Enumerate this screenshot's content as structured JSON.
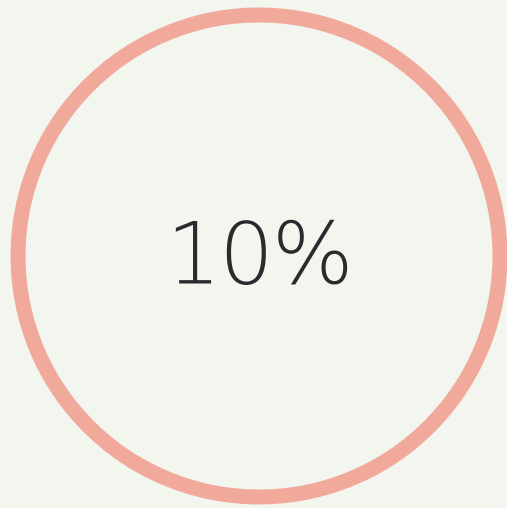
{
  "progress": {
    "label": "10%"
  }
}
